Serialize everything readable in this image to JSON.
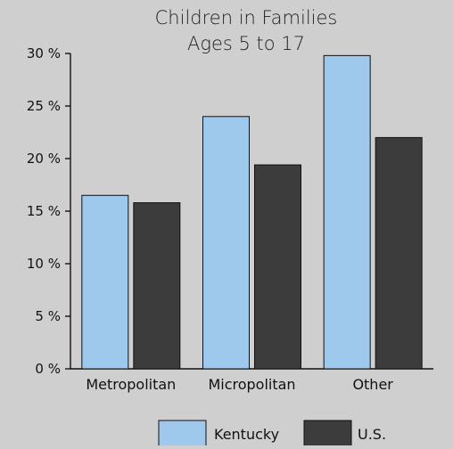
{
  "chart_data": {
    "type": "bar",
    "title": "Children in Families",
    "subtitle": "Ages 5 to 17",
    "categories": [
      "Metropolitan",
      "Micropolitan",
      "Other"
    ],
    "series": [
      {
        "name": "Kentucky",
        "values": [
          16.5,
          24.0,
          29.8
        ],
        "color": "#9ec8ec"
      },
      {
        "name": "U.S.",
        "values": [
          15.8,
          19.4,
          22.0
        ],
        "color": "#3c3c3c"
      }
    ],
    "ylim": [
      0,
      30
    ],
    "yticks": [
      {
        "value": 0,
        "label": "0 %"
      },
      {
        "value": 5,
        "label": "5 %"
      },
      {
        "value": 10,
        "label": "10 %"
      },
      {
        "value": 15,
        "label": "15 %"
      },
      {
        "value": 20,
        "label": "20 %"
      },
      {
        "value": 25,
        "label": "25 %"
      },
      {
        "value": 30,
        "label": "30 %"
      }
    ],
    "xlabel": "",
    "ylabel": "",
    "grid": false,
    "legend_position": "bottom",
    "background_color": "#cfcfcf"
  }
}
